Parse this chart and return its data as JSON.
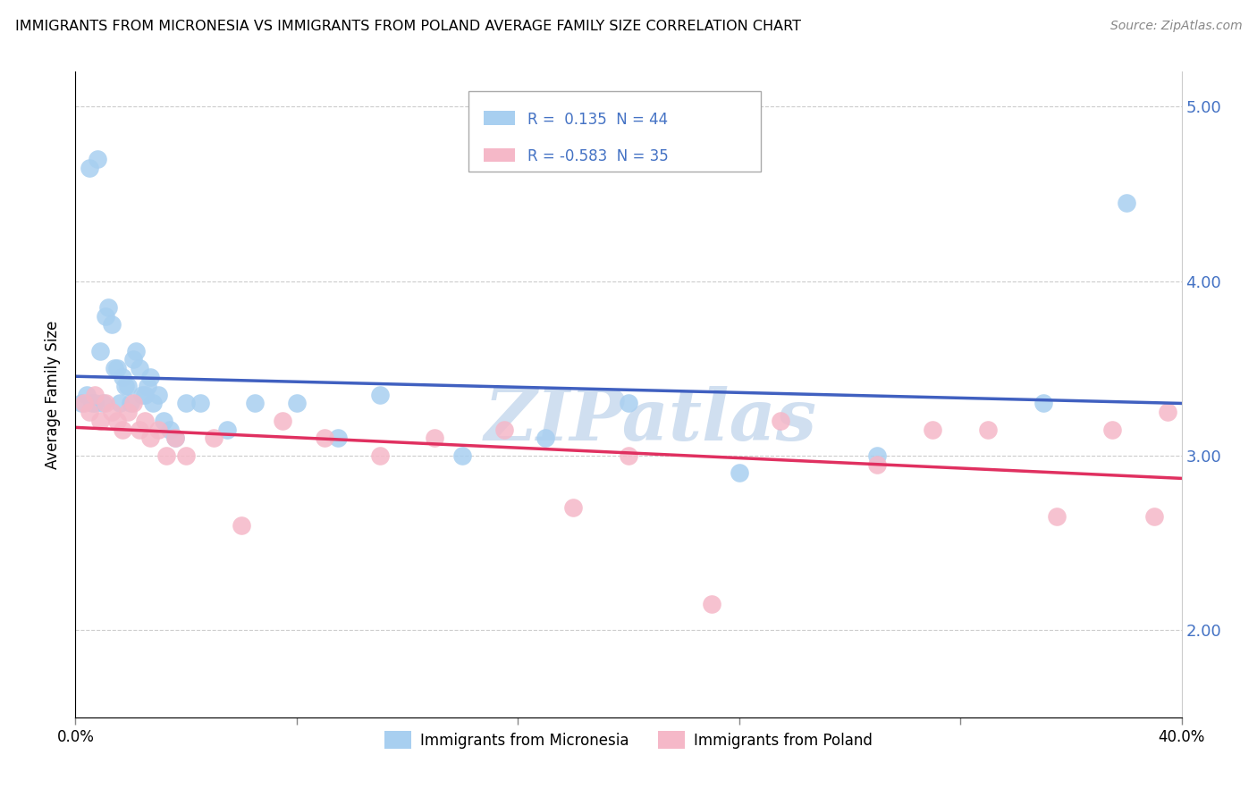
{
  "title": "IMMIGRANTS FROM MICRONESIA VS IMMIGRANTS FROM POLAND AVERAGE FAMILY SIZE CORRELATION CHART",
  "source": "Source: ZipAtlas.com",
  "ylabel": "Average Family Size",
  "legend_r1": "R =  0.135  N = 44",
  "legend_r2": "R = -0.583  N = 35",
  "legend_label1": "Immigrants from Micronesia",
  "legend_label2": "Immigrants from Poland",
  "color_micronesia": "#a8cff0",
  "color_poland": "#f5b8c8",
  "color_line_micronesia": "#4060c0",
  "color_line_poland": "#e03060",
  "color_r_text": "#4472c4",
  "watermark_color": "#d0dff0",
  "xmin": 0.0,
  "xmax": 0.4,
  "ymin": 1.5,
  "ymax": 5.2,
  "yticks": [
    2.0,
    3.0,
    4.0,
    5.0
  ],
  "xtick_labels_show": [
    0.0,
    0.4
  ],
  "xtick_marks": [
    0.0,
    0.08,
    0.16,
    0.24,
    0.32,
    0.4
  ],
  "micronesia_x": [
    0.002,
    0.004,
    0.005,
    0.006,
    0.007,
    0.008,
    0.009,
    0.01,
    0.011,
    0.012,
    0.013,
    0.014,
    0.015,
    0.016,
    0.017,
    0.018,
    0.019,
    0.02,
    0.021,
    0.022,
    0.023,
    0.024,
    0.025,
    0.026,
    0.027,
    0.028,
    0.03,
    0.032,
    0.034,
    0.036,
    0.04,
    0.045,
    0.055,
    0.065,
    0.08,
    0.095,
    0.11,
    0.14,
    0.17,
    0.2,
    0.24,
    0.29,
    0.35,
    0.38
  ],
  "micronesia_y": [
    3.3,
    3.35,
    4.65,
    3.3,
    3.3,
    4.7,
    3.6,
    3.3,
    3.8,
    3.85,
    3.75,
    3.5,
    3.5,
    3.3,
    3.45,
    3.4,
    3.4,
    3.3,
    3.55,
    3.6,
    3.5,
    3.35,
    3.35,
    3.4,
    3.45,
    3.3,
    3.35,
    3.2,
    3.15,
    3.1,
    3.3,
    3.3,
    3.15,
    3.3,
    3.3,
    3.1,
    3.35,
    3.0,
    3.1,
    3.3,
    2.9,
    3.0,
    3.3,
    4.45
  ],
  "poland_x": [
    0.003,
    0.005,
    0.007,
    0.009,
    0.011,
    0.013,
    0.015,
    0.017,
    0.019,
    0.021,
    0.023,
    0.025,
    0.027,
    0.03,
    0.033,
    0.036,
    0.04,
    0.05,
    0.06,
    0.075,
    0.09,
    0.11,
    0.13,
    0.155,
    0.18,
    0.2,
    0.23,
    0.255,
    0.29,
    0.31,
    0.33,
    0.355,
    0.375,
    0.39,
    0.395
  ],
  "poland_y": [
    3.3,
    3.25,
    3.35,
    3.2,
    3.3,
    3.25,
    3.2,
    3.15,
    3.25,
    3.3,
    3.15,
    3.2,
    3.1,
    3.15,
    3.0,
    3.1,
    3.0,
    3.1,
    2.6,
    3.2,
    3.1,
    3.0,
    3.1,
    3.15,
    2.7,
    3.0,
    2.15,
    3.2,
    2.95,
    3.15,
    3.15,
    2.65,
    3.15,
    2.65,
    3.25
  ]
}
